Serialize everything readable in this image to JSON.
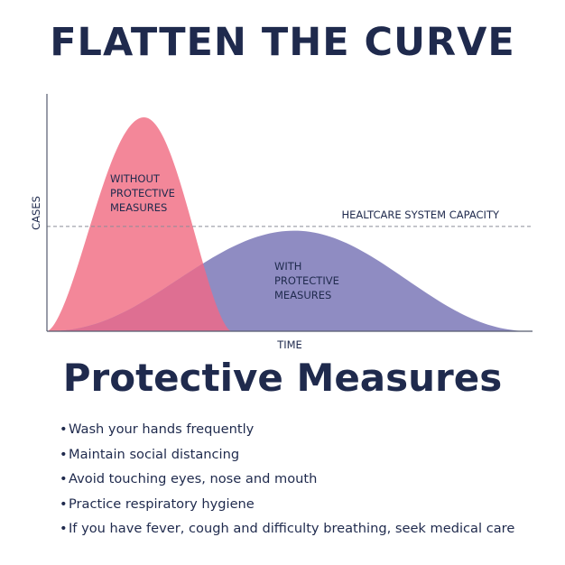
{
  "title": "FLATTEN THE CURVE",
  "chart_data": {
    "type": "area",
    "xlabel": "TIME",
    "ylabel": "CASES",
    "reference_line": {
      "label": "HEALTCARE SYSTEM CAPACITY",
      "style": "dashed",
      "value": 0.49
    },
    "series": [
      {
        "name": "WITHOUT PROTECTIVE MEASURES",
        "label_lines": [
          "WITHOUT",
          "PROTECTIVE",
          "MEASURES"
        ],
        "color": "#f38799",
        "peak": 1.0,
        "peak_time": 0.2,
        "duration": [
          0.0,
          0.38
        ]
      },
      {
        "name": "WITH PROTECTIVE MEASURES",
        "label_lines": [
          "WITH",
          "PROTECTIVE",
          "MEASURES"
        ],
        "color": "#8f8cc2",
        "peak": 0.47,
        "peak_time": 0.51,
        "duration": [
          0.0,
          1.0
        ]
      }
    ],
    "grid": false,
    "legend": "none"
  },
  "subtitle": "Protective Measures",
  "measures": [
    "Wash your hands frequently",
    "Maintain social distancing",
    "Avoid touching eyes, nose and mouth",
    "Practice respiratory hygiene",
    "If you have fever, cough and difficulty breathing, seek medical care"
  ],
  "colors": {
    "text": "#1f2a4d",
    "axis": "#555a6e",
    "overlap": "#de6f92"
  }
}
